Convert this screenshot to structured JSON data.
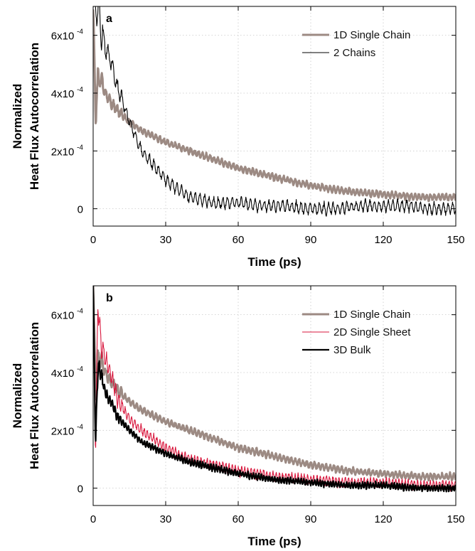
{
  "colors": {
    "single_chain": "#9c8a83",
    "two_chains": "#000000",
    "single_sheet": "#d8163c",
    "bulk": "#000000"
  },
  "chart_data": [
    {
      "type": "line",
      "panel_label": "a",
      "xlabel": "Time (ps)",
      "ylabel_lines": [
        "Normalized",
        "Heat Flux Autocorrelation"
      ],
      "xlim": [
        0,
        150
      ],
      "ylim": [
        -6e-05,
        0.0007
      ],
      "x_ticks": [
        0,
        30,
        60,
        90,
        120,
        150
      ],
      "x_tick_labels": [
        "0",
        "30",
        "60",
        "90",
        "120",
        "150"
      ],
      "y_ticks": [
        0,
        0.0002,
        0.0004,
        0.0006
      ],
      "y_tick_labels": [
        {
          "base": "0",
          "exp": ""
        },
        {
          "base": "2x10",
          "exp": "-4"
        },
        {
          "base": "4x10",
          "exp": "-4"
        },
        {
          "base": "6x10",
          "exp": "-4"
        }
      ],
      "grid": true,
      "legend_position": "top-right",
      "series": [
        {
          "name": "1D Single Chain",
          "color_key": "single_chain",
          "stroke_width": 3,
          "osc_amp": 1.2e-05,
          "osc_period": 1.6,
          "x": [
            0,
            1,
            2,
            3,
            5,
            8,
            10,
            15,
            20,
            30,
            40,
            50,
            60,
            75,
            90,
            105,
            120,
            135,
            150
          ],
          "y": [
            0.0007,
            0.00032,
            0.00045,
            0.00045,
            0.0004,
            0.00036,
            0.00034,
            0.0003,
            0.00027,
            0.00023,
            0.0002,
            0.00017,
            0.00014,
            0.00011,
            8e-05,
            6e-05,
            5e-05,
            4e-05,
            4e-05
          ]
        },
        {
          "name": "2 Chains",
          "color_key": "two_chains",
          "stroke_width": 1.1,
          "osc_amp": 2.2e-05,
          "osc_period": 1.9,
          "x": [
            0,
            1,
            2,
            3,
            4,
            5,
            7,
            10,
            13,
            16,
            20,
            25,
            30,
            35,
            40,
            45,
            50,
            60,
            70,
            80,
            90,
            100,
            110,
            120,
            130,
            140,
            150
          ],
          "y": [
            0.0007,
            0.0007,
            0.00068,
            0.00064,
            0.0006,
            0.00056,
            0.00052,
            0.00042,
            0.00035,
            0.00028,
            0.0002,
            0.00015,
            0.0001,
            7e-05,
            4e-05,
            3e-05,
            2e-05,
            2e-05,
            1e-05,
            1e-05,
            0.0,
            0.0,
            1e-05,
            1e-05,
            1e-05,
            0.0,
            0.0
          ]
        }
      ]
    },
    {
      "type": "line",
      "panel_label": "b",
      "xlabel": "Time (ps)",
      "ylabel_lines": [
        "Normalized",
        "Heat Flux Autocorrelation"
      ],
      "xlim": [
        0,
        150
      ],
      "ylim": [
        -6e-05,
        0.0007
      ],
      "x_ticks": [
        0,
        30,
        60,
        90,
        120,
        150
      ],
      "x_tick_labels": [
        "0",
        "30",
        "60",
        "90",
        "120",
        "150"
      ],
      "y_ticks": [
        0,
        0.0002,
        0.0004,
        0.0006
      ],
      "y_tick_labels": [
        {
          "base": "0",
          "exp": ""
        },
        {
          "base": "2x10",
          "exp": "-4"
        },
        {
          "base": "4x10",
          "exp": "-4"
        },
        {
          "base": "6x10",
          "exp": "-4"
        }
      ],
      "grid": true,
      "legend_position": "top-right",
      "series": [
        {
          "name": "1D Single Chain",
          "color_key": "single_chain",
          "stroke_width": 3,
          "osc_amp": 1.2e-05,
          "osc_period": 1.6,
          "x": [
            0,
            1,
            2,
            3,
            5,
            8,
            10,
            15,
            20,
            30,
            40,
            50,
            60,
            75,
            90,
            105,
            120,
            135,
            150
          ],
          "y": [
            0.0007,
            0.00032,
            0.00045,
            0.00045,
            0.0004,
            0.00036,
            0.00034,
            0.0003,
            0.00027,
            0.00023,
            0.0002,
            0.00017,
            0.00014,
            0.00011,
            8e-05,
            6e-05,
            5e-05,
            4e-05,
            4e-05
          ]
        },
        {
          "name": "2D Single Sheet",
          "color_key": "single_sheet",
          "stroke_width": 1.1,
          "osc_amp": 1.8e-05,
          "osc_period": 1.3,
          "x": [
            0,
            1,
            2,
            3,
            5,
            8,
            10,
            15,
            20,
            30,
            40,
            50,
            60,
            75,
            90,
            105,
            120,
            135,
            150
          ],
          "y": [
            0.0007,
            0.00015,
            0.00065,
            0.00052,
            0.00045,
            0.00038,
            0.00031,
            0.00024,
            0.0002,
            0.00014,
            0.0001,
            8e-05,
            6e-05,
            4e-05,
            3e-05,
            2e-05,
            2e-05,
            1e-05,
            1e-05
          ]
        },
        {
          "name": "3D Bulk",
          "color_key": "bulk",
          "stroke_width": 2.2,
          "osc_amp": 1.2e-05,
          "osc_period": 1.1,
          "x": [
            0,
            1,
            2,
            3,
            5,
            8,
            10,
            15,
            20,
            30,
            40,
            50,
            60,
            75,
            90,
            105,
            120,
            135,
            150
          ],
          "y": [
            0.0007,
            0.00015,
            0.00042,
            0.0004,
            0.00033,
            0.00029,
            0.00025,
            0.0002,
            0.00016,
            0.00012,
            9e-05,
            7e-05,
            5e-05,
            3e-05,
            2e-05,
            1e-05,
            1e-05,
            0.0,
            0.0
          ]
        }
      ]
    }
  ]
}
